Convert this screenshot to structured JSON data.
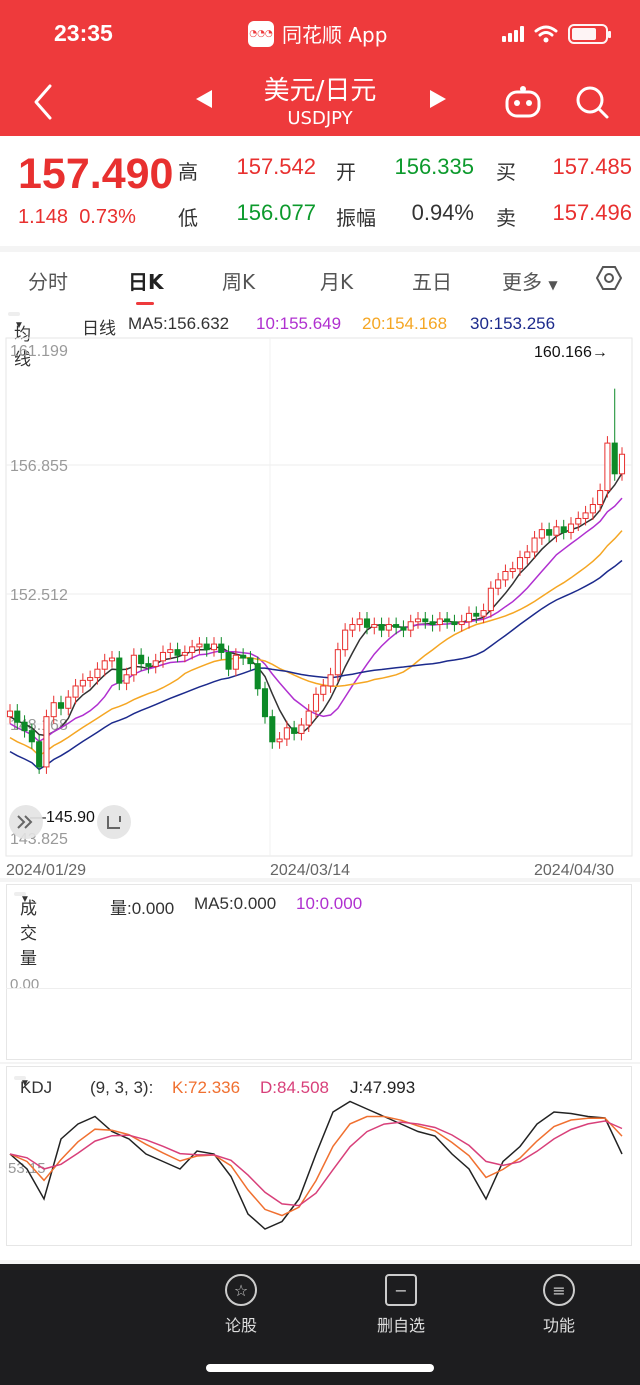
{
  "status": {
    "time": "23:35",
    "app_name": "同花顺 App"
  },
  "nav": {
    "title": "美元/日元",
    "subtitle": "USDJPY"
  },
  "quote": {
    "price": "157.490",
    "change": "1.148",
    "change_pct": "0.73%",
    "high_label": "高",
    "high": "157.542",
    "low_label": "低",
    "low": "156.077",
    "open_label": "开",
    "open": "156.335",
    "amp_label": "振幅",
    "amplitude": "0.94%",
    "buy_label": "买",
    "buy": "157.485",
    "sell_label": "卖",
    "sell": "157.496"
  },
  "tabs": [
    "分时",
    "日K",
    "周K",
    "月K",
    "五日",
    "更多"
  ],
  "active_tab": "日K",
  "ma": {
    "type_label": "均线",
    "period_label": "日线",
    "ma5": "MA5:156.632",
    "ma10": "10:155.649",
    "ma20": "20:154.168",
    "ma30": "30:153.256",
    "colors": {
      "ma5": "#333333",
      "ma10": "#b030d0",
      "ma20": "#f5a623",
      "ma30": "#1c2a8c"
    }
  },
  "chart_data": {
    "type": "candlestick",
    "y_ticks": [
      "161.199",
      "156.855",
      "152.512",
      "148.168",
      "143.825"
    ],
    "ylim": [
      143.825,
      161.199
    ],
    "x_labels": [
      "2024/01/29",
      "2024/03/14",
      "2024/04/30"
    ],
    "max_label": "160.166",
    "min_label": "145.90",
    "colors": {
      "up": "#e8302f",
      "down": "#0c8a27"
    }
  },
  "volume": {
    "label": "成交量",
    "vol": "量:0.000",
    "ma5": "MA5:0.000",
    "ma10": "10:0.000",
    "tick": "0.00"
  },
  "kdj": {
    "label": "KDJ",
    "params": "(9, 3, 3):",
    "k": "K:72.336",
    "d": "D:84.508",
    "j": "J:47.993",
    "tick": "53.15",
    "colors": {
      "k": "#f07030",
      "d": "#d8407a",
      "j": "#222222"
    }
  },
  "bottom": {
    "item1": "论股",
    "item2": "删自选",
    "item3": "功能"
  }
}
